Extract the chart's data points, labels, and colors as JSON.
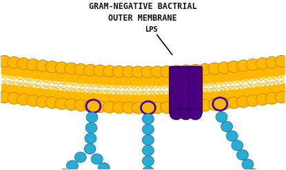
{
  "title": "GRAM-NEGATIVE BACTRIAL\nOUTER MEMBRANE",
  "lps_label": "LPS",
  "bg_color": "#ffffff",
  "membrane_color": "#FFB800",
  "membrane_outline": "#CC8800",
  "lps_bead_color": "#29ABD4",
  "lps_bead_outline": "#1A7A9A",
  "lps_anchor_color": "#FFB800",
  "lps_anchor_outline": "#4400AA",
  "protein_color": "#4B0082",
  "protein_outline": "#2A0055",
  "text_color": "#111111",
  "title_fontsize": 8.5,
  "lps_label_fontsize": 7.5
}
